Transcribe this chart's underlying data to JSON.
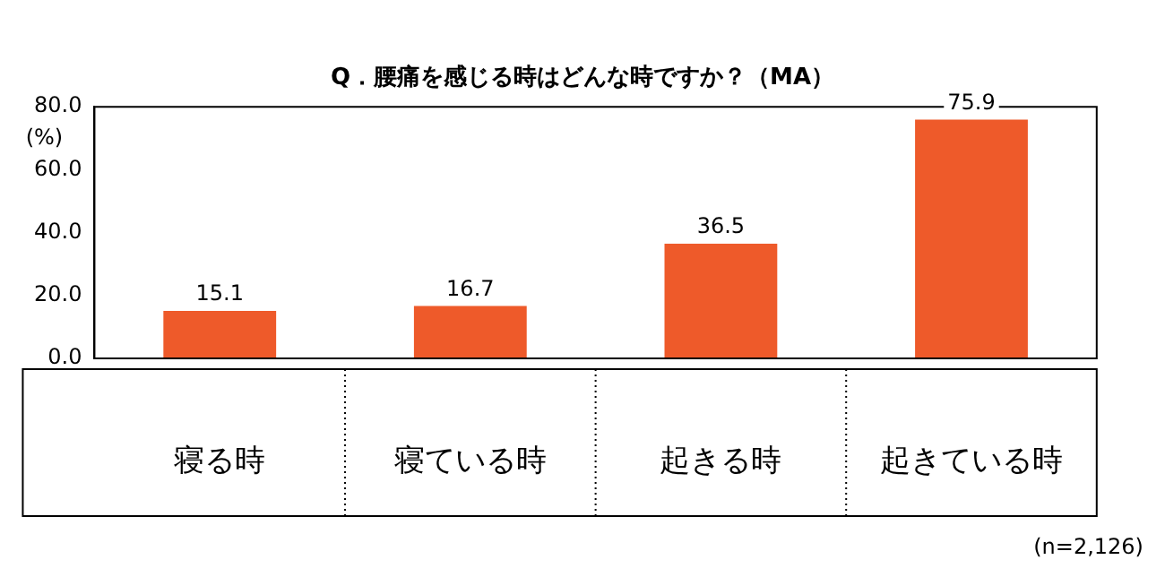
{
  "chart_data": {
    "type": "bar",
    "title": "Q．腰痛を感じる時はどんな時ですか？（MA）",
    "ylabel": "(%)",
    "categories": [
      "寝る時",
      "寝ている時",
      "起きる時",
      "起きている時"
    ],
    "values": [
      15.1,
      16.7,
      36.5,
      75.9
    ],
    "color": "#ee5a2a",
    "ylim": [
      0,
      80
    ],
    "yticks": [
      {
        "value": 0,
        "label": "0.0"
      },
      {
        "value": 20,
        "label": "20.0"
      },
      {
        "value": 40,
        "label": "40.0"
      },
      {
        "value": 60,
        "label": "60.0"
      },
      {
        "value": 80,
        "label": "80.0"
      }
    ],
    "grid": false,
    "legend": false,
    "data_labels": true,
    "annotations": [
      "(n=2,126)"
    ]
  }
}
